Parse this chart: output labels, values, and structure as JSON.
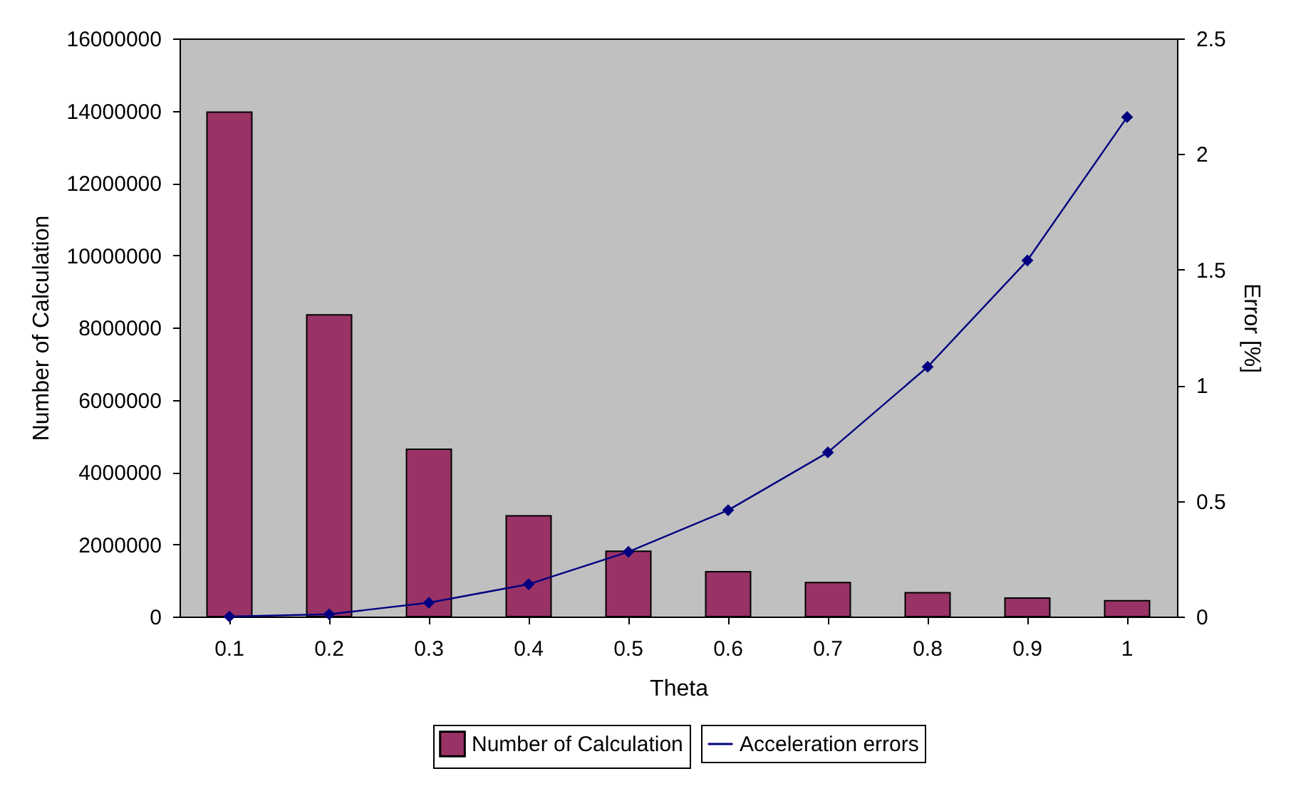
{
  "chart_data": {
    "type": "bar",
    "xlabel": "Theta",
    "ylabel": "Number of Calculation",
    "y2label": "Error [%]",
    "categories": [
      "0.1",
      "0.2",
      "0.3",
      "0.4",
      "0.5",
      "0.6",
      "0.7",
      "0.8",
      "0.9",
      "1"
    ],
    "series": [
      {
        "name": "Number of Calculation",
        "color": "#993366",
        "values": [
          13960000,
          8350000,
          4630000,
          2790000,
          1810000,
          1240000,
          940000,
          660000,
          510000,
          440000
        ]
      },
      {
        "name": "Acceleration errors",
        "type": "line",
        "axis": "y2",
        "color": "#000080",
        "marker": "diamond",
        "values": [
          0,
          0.01,
          0.06,
          0.14,
          0.28,
          0.46,
          0.71,
          1.08,
          1.54,
          2.16
        ]
      }
    ],
    "ylim": [
      0,
      16000000
    ],
    "yticks": [
      0,
      2000000,
      4000000,
      6000000,
      8000000,
      10000000,
      12000000,
      14000000,
      16000000
    ],
    "y2lim": [
      0,
      2.5
    ],
    "y2ticks": [
      0,
      0.5,
      1,
      1.5,
      2,
      2.5
    ],
    "grid": false,
    "legend": "bottom"
  }
}
